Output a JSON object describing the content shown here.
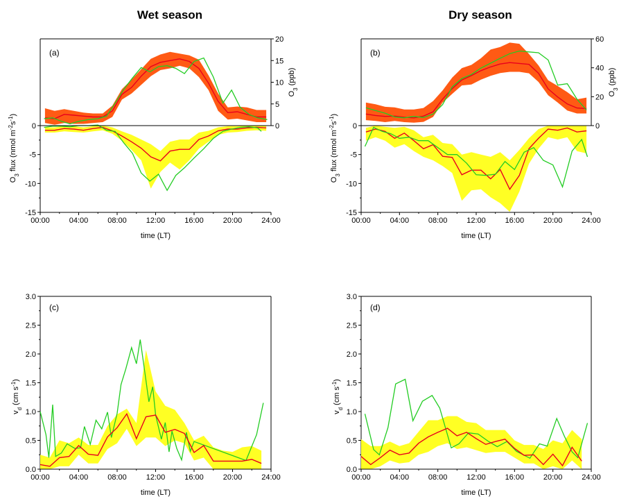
{
  "titles": {
    "wet": "Wet season",
    "dry": "Dry season"
  },
  "colors": {
    "band_conc": "#ff5a14",
    "band_flux": "#ffff24",
    "model": "#e8001c",
    "obs": "#22cc22",
    "axis": "#000000"
  },
  "chart_data": [
    {
      "type": "line",
      "panel_label": "(a)",
      "xlabel": "time (LT)",
      "ylabel_left": "O3 flux (nmol m-2s-1)",
      "ylabel_right": "O3 (ppb)",
      "xlim": [
        0,
        24
      ],
      "ylim_left": [
        -15,
        0
      ],
      "ylim_right": [
        0,
        20
      ],
      "xticks": [
        "00:00",
        "04:00",
        "08:00",
        "12:00",
        "16:00",
        "20:00",
        "24:00"
      ],
      "yticks_left": [
        "-15",
        "-10",
        "-5",
        "0"
      ],
      "yticks_right": [
        "0",
        "5",
        "10",
        "15",
        "20"
      ],
      "x": [
        0.5,
        1.5,
        2.5,
        3.5,
        4.5,
        5.5,
        6.5,
        7.5,
        8.5,
        9.5,
        10.5,
        11.5,
        12.5,
        13.5,
        14.5,
        15.5,
        16.5,
        17.5,
        18.5,
        19.5,
        20.5,
        21.5,
        22.5,
        23.5
      ],
      "concentration": {
        "mean": [
          1.8,
          1.6,
          2.6,
          2.4,
          2.2,
          2.0,
          2.0,
          3.4,
          7.2,
          8.8,
          11.4,
          13.6,
          14.6,
          15.0,
          15.4,
          14.8,
          13.2,
          9.8,
          5.6,
          3.0,
          3.2,
          2.6,
          2.0,
          2.0
        ],
        "lower": [
          0.6,
          0.2,
          0.6,
          0.4,
          0.4,
          0.6,
          0.8,
          2.0,
          6.0,
          7.4,
          9.4,
          11.4,
          12.8,
          13.2,
          13.8,
          13.2,
          11.2,
          8.2,
          3.4,
          1.4,
          1.6,
          1.2,
          0.8,
          0.8
        ],
        "upper": [
          4.0,
          3.4,
          3.8,
          3.4,
          3.0,
          2.8,
          2.8,
          4.6,
          8.4,
          10.6,
          13.0,
          15.4,
          16.4,
          17.0,
          16.6,
          16.2,
          15.2,
          11.6,
          7.4,
          4.2,
          4.4,
          4.2,
          3.6,
          3.6
        ],
        "obs": [
          1.6,
          1.8,
          1.0,
          0.4,
          1.0,
          1.4,
          1.6,
          2.2,
          5.2,
          8.4,
          11.0,
          13.4,
          12.4,
          13.6,
          13.8,
          13.2,
          12.0,
          14.8,
          15.6,
          11.2,
          5.2,
          8.2,
          4.2,
          2.6,
          1.8,
          1.4
        ]
      },
      "obs_x": [
        0.4,
        1.3,
        2.2,
        3.1,
        4.0,
        5.0,
        6.0,
        6.9,
        7.8,
        8.7,
        9.6,
        10.5,
        11.4,
        12.3,
        13.2,
        14.1,
        15.0,
        16.0,
        17.0,
        18.0,
        19.0,
        19.9,
        20.8,
        21.7,
        22.6,
        23.6
      ],
      "flux": {
        "mean": [
          -0.8,
          -0.8,
          -0.5,
          -0.6,
          -0.8,
          -0.5,
          -0.3,
          -0.9,
          -1.8,
          -2.8,
          -3.9,
          -5.4,
          -6.1,
          -4.4,
          -4.1,
          -4.1,
          -2.4,
          -1.8,
          -0.9,
          -0.6,
          -0.6,
          -0.4,
          -0.3,
          -0.4
        ],
        "lower": [
          -1.2,
          -1.2,
          -1.0,
          -1.1,
          -1.2,
          -1.0,
          -0.8,
          -1.4,
          -2.6,
          -4.2,
          -6.0,
          -10.9,
          -8.0,
          -6.4,
          -7.6,
          -6.0,
          -4.0,
          -2.8,
          -1.6,
          -1.2,
          -1.1,
          -0.9,
          -0.8,
          -0.9
        ],
        "upper": [
          -0.3,
          -0.3,
          -0.1,
          -0.1,
          -0.3,
          -0.1,
          0.0,
          -0.3,
          -1.0,
          -1.6,
          -2.4,
          -3.2,
          -4.4,
          -2.8,
          -2.4,
          -2.4,
          -1.2,
          -0.9,
          -0.3,
          -0.1,
          -0.1,
          0.0,
          0.0,
          0.0
        ],
        "obs": [
          -0.3,
          -0.1,
          -0.1,
          -0.2,
          0.0,
          0.0,
          0.1,
          -0.8,
          -1.0,
          -3.0,
          -4.8,
          -8.2,
          -9.6,
          -8.4,
          -11.2,
          -8.6,
          -7.3,
          -5.6,
          -4.0,
          -2.2,
          -1.0,
          -0.6,
          -0.3,
          -0.2,
          -0.4,
          -1.0
        ],
        "obs_x": [
          0.4,
          1.3,
          2.2,
          3.1,
          4.0,
          5.0,
          6.0,
          6.9,
          7.8,
          8.7,
          9.6,
          10.5,
          11.4,
          12.3,
          13.2,
          14.1,
          15.0,
          16.0,
          17.0,
          18.0,
          19.0,
          19.9,
          20.8,
          21.7,
          22.6,
          23.0
        ]
      }
    },
    {
      "type": "line",
      "panel_label": "(b)",
      "xlabel": "time (LT)",
      "ylabel_left": "O3 flux (nmol m-2s-1)",
      "ylabel_right": "O3 (ppb)",
      "xlim": [
        0,
        24
      ],
      "ylim_left": [
        -15,
        0
      ],
      "ylim_right": [
        0,
        60
      ],
      "xticks": [
        "00:00",
        "04:00",
        "08:00",
        "12:00",
        "16:00",
        "20:00",
        "24:00"
      ],
      "yticks_left": [
        "-15",
        "-10",
        "-5",
        "0"
      ],
      "yticks_right": [
        "0",
        "20",
        "40",
        "60"
      ],
      "x": [
        0.5,
        1.5,
        2.5,
        3.5,
        4.5,
        5.5,
        6.5,
        7.5,
        8.5,
        9.5,
        10.5,
        11.5,
        12.5,
        13.5,
        14.5,
        15.5,
        16.5,
        17.5,
        18.5,
        19.5,
        20.5,
        21.5,
        22.5,
        23.5
      ],
      "concentration": {
        "mean": [
          8.0,
          7.0,
          6.4,
          6.6,
          5.8,
          5.4,
          6.6,
          9.6,
          18.4,
          25.6,
          31.6,
          34.6,
          38.0,
          40.6,
          42.6,
          43.6,
          43.0,
          42.4,
          36.2,
          25.4,
          19.8,
          15.0,
          12.2,
          11.8
        ],
        "lower": [
          3.8,
          3.2,
          2.4,
          3.2,
          2.4,
          2.0,
          2.6,
          6.0,
          16.0,
          22.0,
          27.8,
          28.4,
          31.8,
          34.4,
          36.4,
          37.2,
          37.2,
          36.2,
          30.2,
          21.0,
          16.0,
          10.4,
          8.4,
          8.4
        ],
        "upper": [
          16.0,
          14.8,
          13.0,
          12.6,
          11.2,
          11.2,
          12.2,
          17.0,
          24.4,
          33.2,
          39.8,
          42.0,
          46.6,
          52.6,
          54.4,
          57.4,
          56.6,
          49.6,
          41.6,
          31.4,
          27.4,
          23.2,
          18.2,
          19.4
        ]
      },
      "obs": [
        12.4,
        10.4,
        8.6,
        6.0,
        5.4,
        6.4,
        5.6,
        8.0,
        14.6,
        26.8,
        32.6,
        35.4,
        39.8,
        43.2,
        46.6,
        49.8,
        51.6,
        51.0,
        50.4,
        45.4,
        28.0,
        29.0,
        18.4,
        10.8
      ],
      "obs_x": [
        0.5,
        1.5,
        2.5,
        3.5,
        4.5,
        5.5,
        6.5,
        7.5,
        8.5,
        9.5,
        10.5,
        11.5,
        12.5,
        13.5,
        14.5,
        15.5,
        16.5,
        17.5,
        18.5,
        19.5,
        20.5,
        21.5,
        22.5,
        23.5
      ],
      "flux": {
        "mean": [
          -1.1,
          -0.6,
          -1.0,
          -2.2,
          -1.3,
          -2.6,
          -4.0,
          -3.3,
          -5.3,
          -5.5,
          -8.5,
          -7.7,
          -7.7,
          -9.2,
          -7.6,
          -11.0,
          -8.6,
          -4.0,
          -2.2,
          -0.6,
          -0.8,
          -0.4,
          -1.1,
          -0.9
        ],
        "lower": [
          -2.6,
          -2.0,
          -2.6,
          -3.8,
          -3.2,
          -4.4,
          -5.4,
          -6.0,
          -7.0,
          -8.2,
          -13.0,
          -11.2,
          -11.0,
          -12.4,
          -13.4,
          -14.9,
          -11.4,
          -6.6,
          -4.0,
          -2.0,
          -2.4,
          -2.0,
          -4.4,
          -4.8
        ],
        "upper": [
          -0.4,
          0.0,
          -0.2,
          -0.4,
          -0.2,
          -0.8,
          -2.0,
          -1.6,
          -3.0,
          -3.2,
          -5.0,
          -4.6,
          -5.0,
          -5.4,
          -4.6,
          -6.0,
          -4.2,
          -2.2,
          -0.6,
          0.0,
          0.0,
          0.0,
          0.0,
          0.0
        ],
        "obs": [
          -3.6,
          -0.3,
          -1.0,
          -1.4,
          -2.2,
          -2.0,
          -2.6,
          -2.6,
          -3.8,
          -5.0,
          -5.0,
          -6.5,
          -8.5,
          -8.6,
          -8.4,
          -6.2,
          -7.6,
          -4.6,
          -3.8,
          -6.0,
          -6.8,
          -10.6,
          -4.4,
          -2.4,
          -5.4
        ],
        "obs_x": [
          0.4,
          1.3,
          2.2,
          3.1,
          4.0,
          5.0,
          6.0,
          7.0,
          8.0,
          9.0,
          10.0,
          11.0,
          12.0,
          13.0,
          14.0,
          15.0,
          16.0,
          17.0,
          18.0,
          19.0,
          20.0,
          21.0,
          22.0,
          23.0,
          23.6
        ]
      }
    },
    {
      "type": "line",
      "panel_label": "(c)",
      "xlabel": "time (LT)",
      "ylabel": "vd (cm s-1)",
      "xlim": [
        0,
        24
      ],
      "ylim": [
        0,
        3
      ],
      "xticks": [
        "00:00",
        "04:00",
        "08:00",
        "12:00",
        "16:00",
        "20:00",
        "24:00"
      ],
      "yticks": [
        "0.0",
        "0.5",
        "1.0",
        "1.5",
        "2.0",
        "2.5",
        "3.0"
      ],
      "x": [
        0.0,
        1.0,
        2.0,
        3.0,
        4.0,
        5.0,
        6.0,
        7.0,
        8.0,
        9.0,
        10.0,
        11.0,
        12.0,
        13.0,
        14.0,
        15.0,
        16.0,
        17.0,
        18.0,
        19.0,
        20.0,
        21.0,
        22.0,
        23.0
      ],
      "mean": [
        0.08,
        0.05,
        0.2,
        0.22,
        0.41,
        0.26,
        0.24,
        0.56,
        0.72,
        0.96,
        0.53,
        0.91,
        0.94,
        0.64,
        0.69,
        0.62,
        0.29,
        0.41,
        0.14,
        0.14,
        0.14,
        0.14,
        0.17,
        0.1
      ],
      "lower": [
        0.0,
        0.0,
        0.05,
        0.05,
        0.25,
        0.1,
        0.1,
        0.35,
        0.45,
        0.7,
        0.4,
        0.55,
        0.55,
        0.4,
        0.5,
        0.45,
        0.15,
        0.2,
        0.0,
        0.0,
        0.0,
        0.0,
        0.0,
        0.0
      ],
      "upper": [
        0.25,
        0.2,
        0.5,
        0.45,
        0.55,
        0.42,
        0.42,
        0.75,
        0.95,
        1.05,
        0.8,
        2.07,
        1.35,
        1.1,
        1.03,
        0.8,
        0.5,
        0.58,
        0.38,
        0.32,
        0.3,
        0.38,
        0.4,
        0.32
      ],
      "obs": [
        1.0,
        0.6,
        0.2,
        1.12,
        0.22,
        0.28,
        0.44,
        0.36,
        0.37,
        0.74,
        0.43,
        0.85,
        0.7,
        0.99,
        0.55,
        0.97,
        1.47,
        1.74,
        2.11,
        1.83,
        2.25,
        1.66,
        1.17,
        1.43,
        0.94,
        0.52,
        0.81,
        0.3,
        0.66,
        0.36,
        0.16,
        0.64,
        0.31,
        0.48,
        0.15,
        0.6,
        1.15
      ],
      "obs_x": [
        0.0,
        0.6,
        0.9,
        1.3,
        1.6,
        2.2,
        2.8,
        3.6,
        4.2,
        4.6,
        5.2,
        5.8,
        6.4,
        7.0,
        7.4,
        8.0,
        8.4,
        8.9,
        9.5,
        10.0,
        10.4,
        10.9,
        11.3,
        11.7,
        12.0,
        12.6,
        13.0,
        13.4,
        13.7,
        14.2,
        14.7,
        15.2,
        15.6,
        16.0,
        21.4,
        22.5,
        23.2
      ]
    },
    {
      "type": "line",
      "panel_label": "(d)",
      "xlabel": "time (LT)",
      "ylabel": "vd (cm s-1)",
      "xlim": [
        0,
        24
      ],
      "ylim": [
        0,
        3
      ],
      "xticks": [
        "00:00",
        "04:00",
        "08:00",
        "12:00",
        "16:00",
        "20:00",
        "24:00"
      ],
      "yticks": [
        "0.0",
        "0.5",
        "1.0",
        "1.5",
        "2.0",
        "2.5",
        "3.0"
      ],
      "x": [
        0.0,
        1.0,
        2.0,
        3.0,
        4.0,
        5.0,
        6.0,
        7.0,
        8.0,
        9.0,
        10.0,
        11.0,
        12.0,
        13.0,
        14.0,
        15.0,
        16.0,
        17.0,
        18.0,
        19.0,
        20.0,
        21.0,
        22.0,
        23.0
      ],
      "mean": [
        0.22,
        0.08,
        0.2,
        0.33,
        0.25,
        0.28,
        0.45,
        0.56,
        0.64,
        0.71,
        0.58,
        0.64,
        0.53,
        0.43,
        0.48,
        0.52,
        0.36,
        0.24,
        0.25,
        0.08,
        0.26,
        0.06,
        0.38,
        0.14
      ],
      "lower": [
        0.0,
        0.0,
        0.05,
        0.15,
        0.1,
        0.12,
        0.25,
        0.3,
        0.4,
        0.45,
        0.35,
        0.38,
        0.33,
        0.28,
        0.3,
        0.3,
        0.2,
        0.1,
        0.1,
        0.0,
        0.05,
        0.0,
        0.15,
        0.0
      ],
      "upper": [
        0.52,
        0.4,
        0.4,
        0.48,
        0.4,
        0.45,
        0.65,
        0.85,
        0.85,
        0.92,
        0.92,
        0.82,
        0.8,
        0.68,
        0.68,
        0.68,
        0.5,
        0.42,
        0.42,
        0.35,
        0.5,
        0.45,
        0.68,
        0.52
      ],
      "obs": [
        0.96,
        0.34,
        0.25,
        0.72,
        1.48,
        1.56,
        0.84,
        1.18,
        1.28,
        1.06,
        0.37,
        0.44,
        0.63,
        0.61,
        0.49,
        0.39,
        0.48,
        0.31,
        0.19,
        0.44,
        0.4,
        0.88,
        0.57,
        0.3,
        0.2,
        0.8
      ],
      "obs_x": [
        0.4,
        1.3,
        1.9,
        2.8,
        3.6,
        4.6,
        5.4,
        6.4,
        7.4,
        8.2,
        9.4,
        10.2,
        11.2,
        12.2,
        13.2,
        14.2,
        15.2,
        16.2,
        17.6,
        18.6,
        19.4,
        20.4,
        21.2,
        22.0,
        22.6,
        23.6
      ]
    }
  ]
}
